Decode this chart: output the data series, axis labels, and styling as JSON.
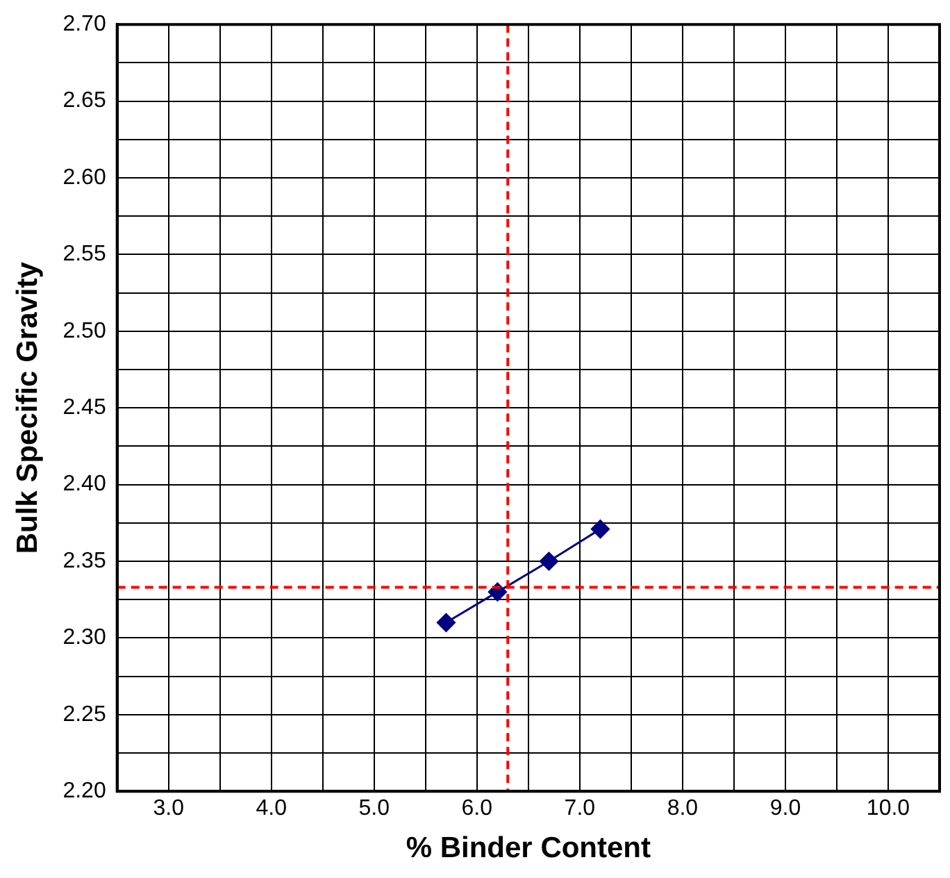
{
  "chart_data": {
    "type": "line",
    "xlabel": "% Binder Content",
    "ylabel": "Bulk Specific Gravity",
    "x": [
      5.7,
      6.2,
      6.7,
      7.2
    ],
    "series": [
      {
        "color": "#000080",
        "values": [
          2.31,
          2.33,
          2.35,
          2.371
        ]
      }
    ],
    "marker": "diamond",
    "line_style": "solid",
    "grid": true,
    "legend": false,
    "xlim": [
      2.5,
      10.5
    ],
    "xticks": [
      {
        "value": 2.5,
        "label": null
      },
      {
        "value": 3,
        "label": "3.0"
      },
      {
        "value": 3.5,
        "label": null
      },
      {
        "value": 4,
        "label": "4.0"
      },
      {
        "value": 4.5,
        "label": null
      },
      {
        "value": 5,
        "label": "5.0"
      },
      {
        "value": 5.5,
        "label": null
      },
      {
        "value": 6,
        "label": "6.0"
      },
      {
        "value": 6.5,
        "label": null
      },
      {
        "value": 7,
        "label": "7.0"
      },
      {
        "value": 7.5,
        "label": null
      },
      {
        "value": 8,
        "label": "8.0"
      },
      {
        "value": 8.5,
        "label": null
      },
      {
        "value": 9,
        "label": "9.0"
      },
      {
        "value": 9.5,
        "label": null
      },
      {
        "value": 10,
        "label": "10.0"
      },
      {
        "value": 10.5,
        "label": null
      }
    ],
    "ylim": [
      2.2,
      2.7
    ],
    "yticks": [
      {
        "value": 2.2,
        "label": "2.20"
      },
      {
        "value": 2.225,
        "label": null
      },
      {
        "value": 2.25,
        "label": "2.25"
      },
      {
        "value": 2.275,
        "label": null
      },
      {
        "value": 2.3,
        "label": "2.30"
      },
      {
        "value": 2.325,
        "label": null
      },
      {
        "value": 2.35,
        "label": "2.35"
      },
      {
        "value": 2.375,
        "label": null
      },
      {
        "value": 2.4,
        "label": "2.40"
      },
      {
        "value": 2.425,
        "label": null
      },
      {
        "value": 2.45,
        "label": "2.45"
      },
      {
        "value": 2.475,
        "label": null
      },
      {
        "value": 2.5,
        "label": "2.50"
      },
      {
        "value": 2.525,
        "label": null
      },
      {
        "value": 2.55,
        "label": "2.55"
      },
      {
        "value": 2.575,
        "label": null
      },
      {
        "value": 2.6,
        "label": "2.60"
      },
      {
        "value": 2.625,
        "label": null
      },
      {
        "value": 2.65,
        "label": "2.65"
      },
      {
        "value": 2.675,
        "label": null
      },
      {
        "value": 2.7,
        "label": "2.70"
      }
    ],
    "ref_lines": [
      {
        "axis": "x",
        "value": 6.3,
        "color": "#ff0000",
        "line_style": "dashed"
      },
      {
        "axis": "y",
        "value": 2.333,
        "color": "#ff0000",
        "line_style": "dashed"
      }
    ]
  }
}
